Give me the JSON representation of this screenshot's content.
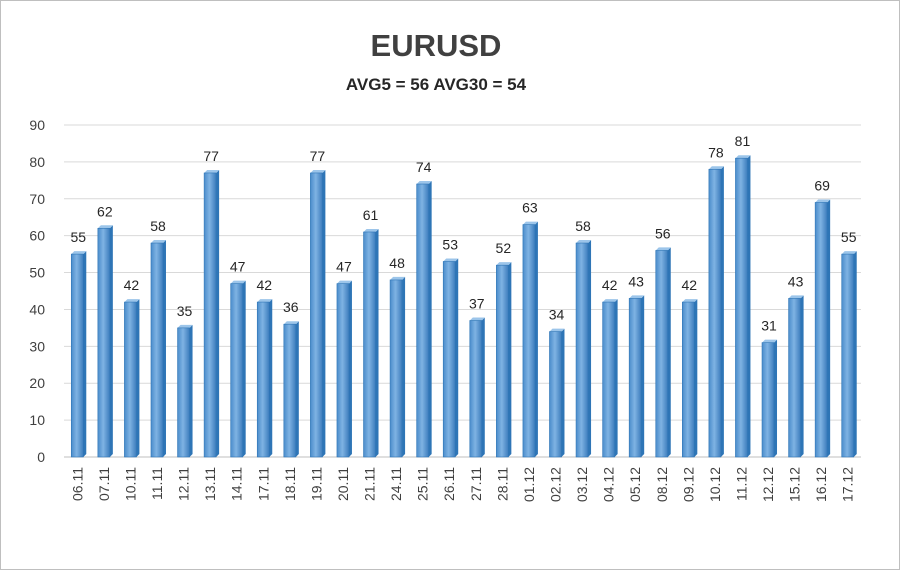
{
  "chart_data": {
    "type": "bar",
    "title": "EURUSD",
    "subtitle": "AVG5 = 56 AVG30 = 54",
    "categories": [
      "06.11",
      "07.11",
      "10.11",
      "11.11",
      "12.11",
      "13.11",
      "14.11",
      "17.11",
      "18.11",
      "19.11",
      "20.11",
      "21.11",
      "24.11",
      "25.11",
      "26.11",
      "27.11",
      "28.11",
      "01.12",
      "02.12",
      "03.12",
      "04.12",
      "05.12",
      "08.12",
      "09.12",
      "10.12",
      "11.12",
      "12.12",
      "15.12",
      "16.12",
      "17.12"
    ],
    "values": [
      55,
      62,
      42,
      58,
      35,
      77,
      47,
      42,
      36,
      77,
      47,
      61,
      48,
      74,
      53,
      37,
      52,
      63,
      34,
      58,
      42,
      43,
      56,
      42,
      78,
      81,
      31,
      43,
      69,
      55
    ],
    "ylim": [
      0,
      90
    ],
    "yticks": [
      0,
      10,
      20,
      30,
      40,
      50,
      60,
      70,
      80,
      90
    ],
    "grid": true,
    "bar_color": "#5B9BD5",
    "bar_color_dark": "#2E75B6",
    "gridline_color": "#d9d9d9"
  }
}
